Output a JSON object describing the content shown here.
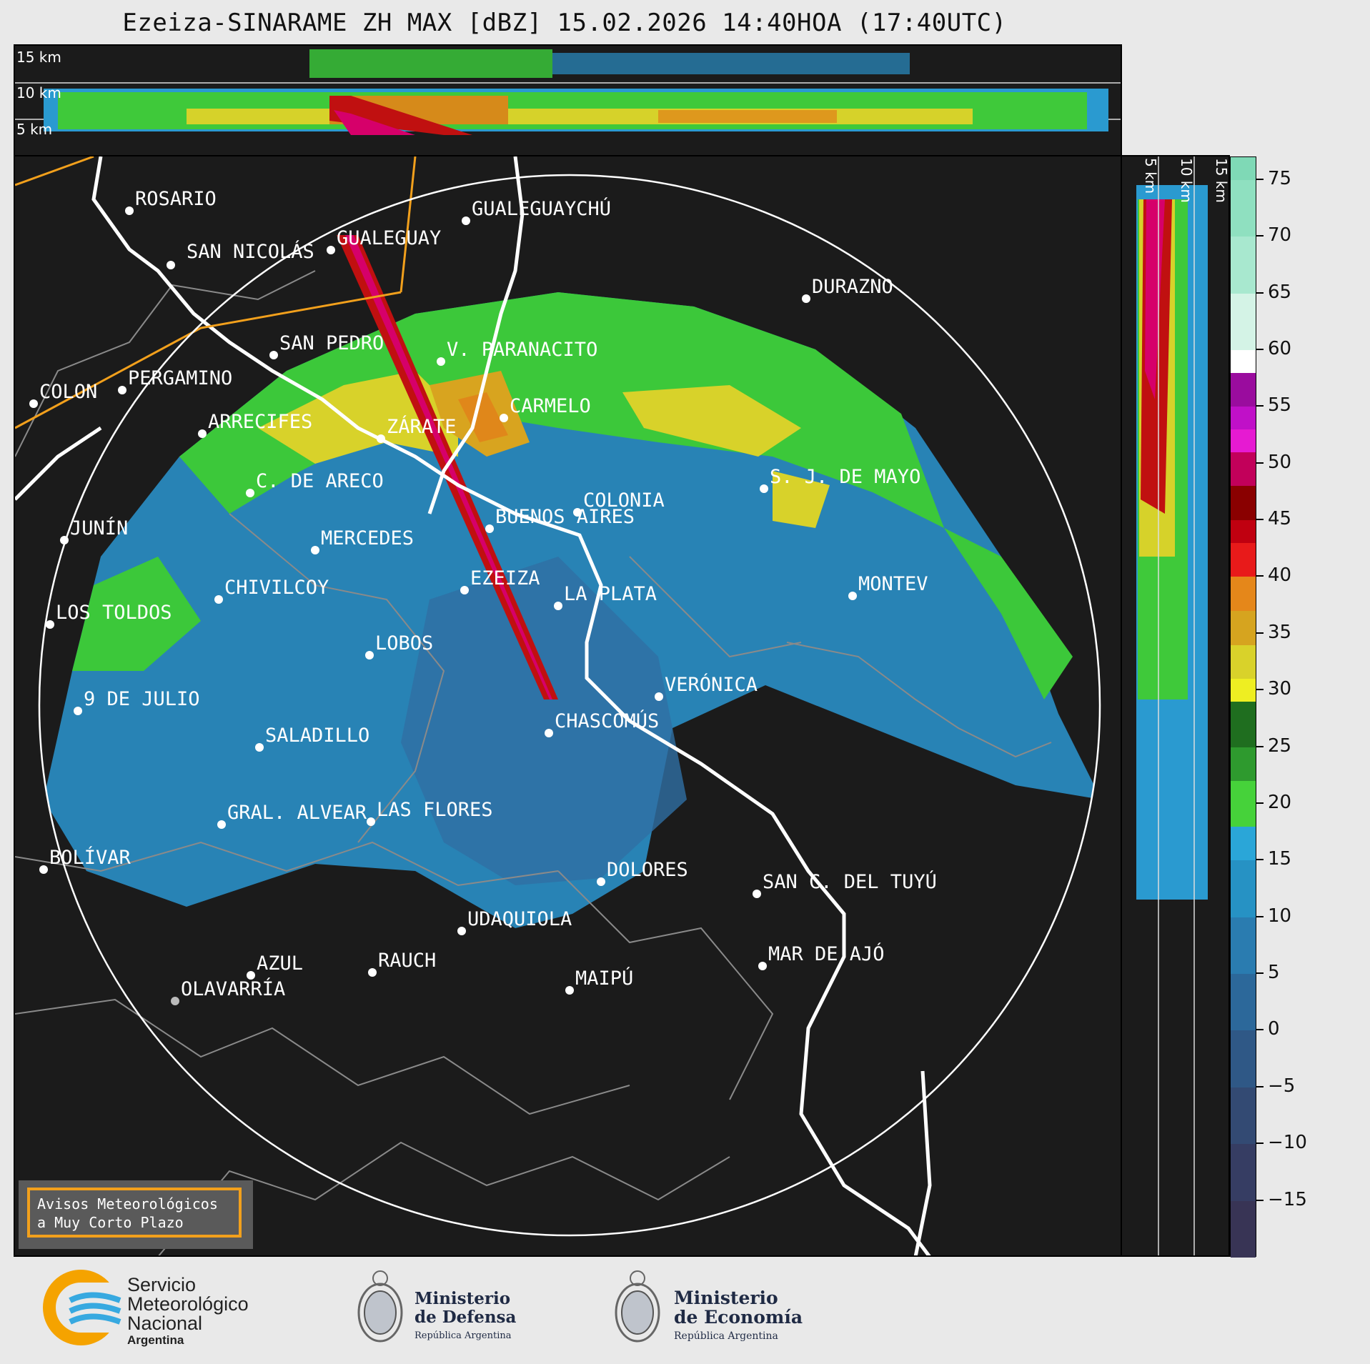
{
  "title": "Ezeiza-SINARAME ZH MAX [dBZ] 15.02.2026 14:40HOA (17:40UTC)",
  "top_panel": {
    "height_labels": [
      "15 km",
      "10 km",
      "5 km"
    ]
  },
  "side_panel": {
    "height_labels": [
      "5 km",
      "10 km",
      "15 km"
    ]
  },
  "colorbar": {
    "ticks": [
      "75",
      "70",
      "65",
      "60",
      "55",
      "50",
      "45",
      "40",
      "35",
      "30",
      "25",
      "20",
      "15",
      "10",
      "5",
      "0",
      "−5",
      "−10",
      "−15"
    ],
    "range": [
      -20,
      77
    ],
    "segments": [
      {
        "from": 75,
        "to": 77,
        "color": "#7fd9b6"
      },
      {
        "from": 70,
        "to": 75,
        "color": "#8fe0c0"
      },
      {
        "from": 65,
        "to": 70,
        "color": "#a8e8cf"
      },
      {
        "from": 60,
        "to": 65,
        "color": "#d4f3e6"
      },
      {
        "from": 58,
        "to": 60,
        "color": "#ffffff"
      },
      {
        "from": 55,
        "to": 58,
        "color": "#9a0c9e"
      },
      {
        "from": 53,
        "to": 55,
        "color": "#c010c8"
      },
      {
        "from": 51,
        "to": 53,
        "color": "#e61ad2"
      },
      {
        "from": 48,
        "to": 51,
        "color": "#c2005a"
      },
      {
        "from": 45,
        "to": 48,
        "color": "#8a0000"
      },
      {
        "from": 43,
        "to": 45,
        "color": "#c00010"
      },
      {
        "from": 40,
        "to": 43,
        "color": "#e81a1a"
      },
      {
        "from": 37,
        "to": 40,
        "color": "#e5871a"
      },
      {
        "from": 34,
        "to": 37,
        "color": "#d6a41f"
      },
      {
        "from": 31,
        "to": 34,
        "color": "#d9d22a"
      },
      {
        "from": 29,
        "to": 31,
        "color": "#eeee22"
      },
      {
        "from": 25,
        "to": 29,
        "color": "#1f6e1f"
      },
      {
        "from": 22,
        "to": 25,
        "color": "#2e9a2e"
      },
      {
        "from": 18,
        "to": 22,
        "color": "#46d23a"
      },
      {
        "from": 15,
        "to": 18,
        "color": "#2aa6d8"
      },
      {
        "from": 10,
        "to": 15,
        "color": "#2692c4"
      },
      {
        "from": 5,
        "to": 10,
        "color": "#2a7cb0"
      },
      {
        "from": 0,
        "to": 5,
        "color": "#2c689a"
      },
      {
        "from": -5,
        "to": 0,
        "color": "#2f5886"
      },
      {
        "from": -10,
        "to": -5,
        "color": "#334a73"
      },
      {
        "from": -15,
        "to": -10,
        "color": "#363d63"
      },
      {
        "from": -20,
        "to": -15,
        "color": "#383455"
      }
    ]
  },
  "cities": [
    {
      "name": "ROSARIO",
      "key": "rosario"
    },
    {
      "name": "GUALEGUAYCHÚ",
      "key": "gualeguaychu"
    },
    {
      "name": "GUALEGUAY",
      "key": "gualeguay"
    },
    {
      "name": "SAN NICOLÁS",
      "key": "san-nicolas"
    },
    {
      "name": "DURAZNO",
      "key": "durazno"
    },
    {
      "name": "SAN PEDRO",
      "key": "san-pedro"
    },
    {
      "name": "V. PARANACITO",
      "key": "v-paranacito"
    },
    {
      "name": "COLON",
      "key": "colon"
    },
    {
      "name": "PERGAMINO",
      "key": "pergamino"
    },
    {
      "name": "CARMELO",
      "key": "carmelo"
    },
    {
      "name": "ARRECIFES",
      "key": "arrecifes"
    },
    {
      "name": "ZÁRATE",
      "key": "zarate"
    },
    {
      "name": "S. J. DE MAYO",
      "key": "sj-de-mayo"
    },
    {
      "name": "C. DE ARECO",
      "key": "c-de-areco"
    },
    {
      "name": "COLONIA",
      "key": "colonia"
    },
    {
      "name": "JUNÍN",
      "key": "junin"
    },
    {
      "name": "BUENOS AIRES",
      "key": "buenos-aires"
    },
    {
      "name": "MERCEDES",
      "key": "mercedes"
    },
    {
      "name": "EZEIZA",
      "key": "ezeiza"
    },
    {
      "name": "MONTEV",
      "key": "montevideo"
    },
    {
      "name": "CHIVILCOY",
      "key": "chivilcoy"
    },
    {
      "name": "LA PLATA",
      "key": "la-plata"
    },
    {
      "name": "LOS TOLDOS",
      "key": "los-toldos"
    },
    {
      "name": "LOBOS",
      "key": "lobos"
    },
    {
      "name": "VERÓNICA",
      "key": "veronica"
    },
    {
      "name": "9 DE JULIO",
      "key": "9-de-julio"
    },
    {
      "name": "CHASCOMÚS",
      "key": "chascomus"
    },
    {
      "name": "SALADILLO",
      "key": "saladillo"
    },
    {
      "name": "GRAL. ALVEAR",
      "key": "gral-alvear"
    },
    {
      "name": "LAS FLORES",
      "key": "las-flores"
    },
    {
      "name": "BOLÍVAR",
      "key": "bolivar"
    },
    {
      "name": "DOLORES",
      "key": "dolores"
    },
    {
      "name": "SAN C. DEL TUYÚ",
      "key": "san-c-del-tuyu"
    },
    {
      "name": "UDAQUIOLA",
      "key": "udaquiola"
    },
    {
      "name": "AZUL",
      "key": "azul"
    },
    {
      "name": "RAUCH",
      "key": "rauch"
    },
    {
      "name": "MAIPÚ",
      "key": "maipu"
    },
    {
      "name": "MAR DE AJÓ",
      "key": "mar-de-ajo"
    },
    {
      "name": "OLAVARRÍA",
      "key": "olavarria"
    }
  ],
  "aviso": {
    "line1": "Avisos Meteorológicos",
    "line2": "a Muy Corto Plazo"
  },
  "footer": {
    "smn": {
      "line1": "Servicio",
      "line2": "Meteorológico",
      "line3": "Nacional",
      "line4": "Argentina"
    },
    "defensa": {
      "line1": "Ministerio",
      "line2": "de Defensa",
      "line3": "República Argentina"
    },
    "economia": {
      "line1": "Ministerio",
      "line2": "de Economía",
      "line3": "República Argentina"
    }
  }
}
